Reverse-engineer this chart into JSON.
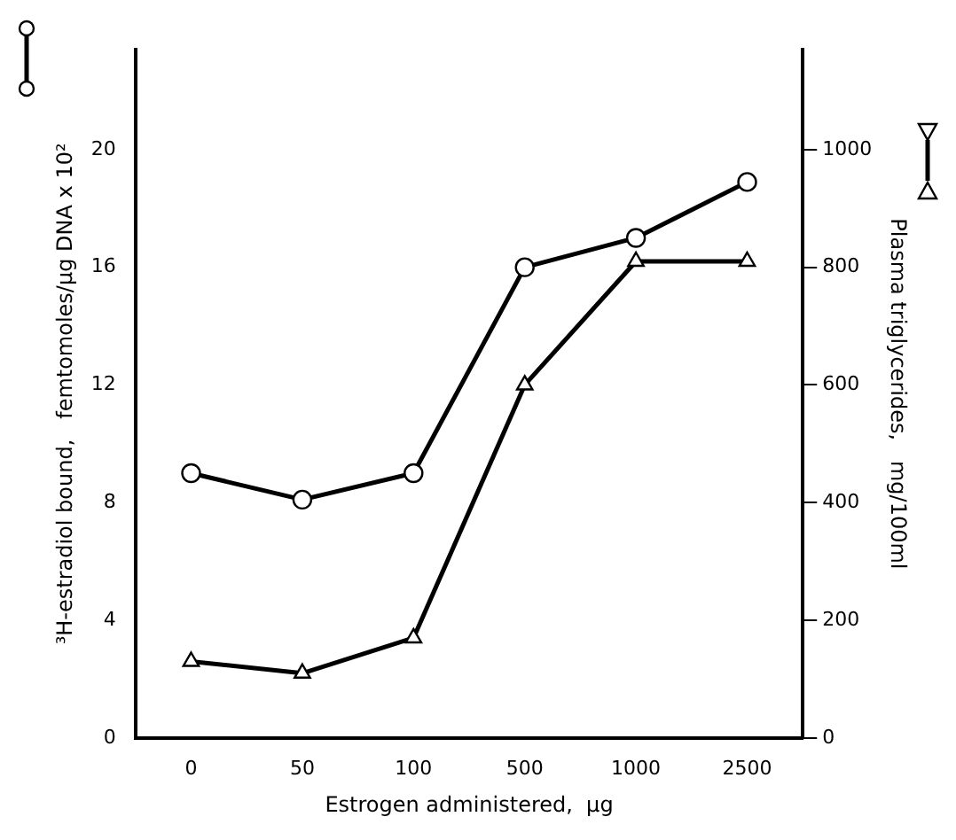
{
  "chart_data": {
    "type": "line",
    "xlabel": "Estrogen administered,  µg",
    "ylabel": "³H-estradiol bound,   femtomoles/µg DNA x 10²",
    "y2label": "Plasma triglycerides,   mg/100ml",
    "categories": [
      "0",
      "50",
      "100",
      "500",
      "1000",
      "2500"
    ],
    "series": [
      {
        "color": "#000000",
        "marker": "circle",
        "values": [
          9.0,
          8.1,
          9.0,
          16.0,
          17.0,
          18.9
        ]
      },
      {
        "color": "#000000",
        "marker": "triangle",
        "axis": "y2",
        "values": [
          130,
          110,
          170,
          600,
          810,
          810
        ]
      }
    ],
    "ylim": [
      0,
      23.4
    ],
    "yticks": [
      0,
      4,
      8,
      12,
      16,
      20
    ],
    "y2lim": [
      0,
      1170
    ],
    "y2ticks": [
      0,
      200,
      400,
      600,
      800,
      1000
    ],
    "grid": false,
    "legend": false,
    "line_style": "solid"
  }
}
